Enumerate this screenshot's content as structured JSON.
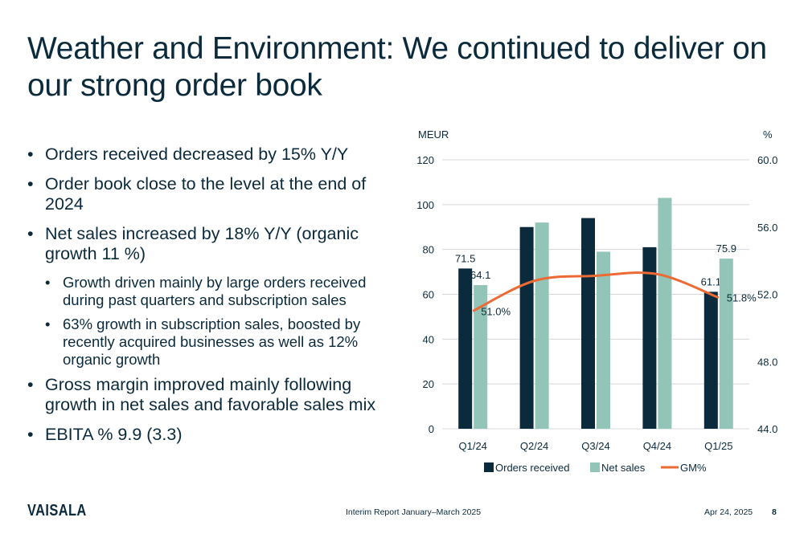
{
  "slide": {
    "title": "Weather and Environment: We continued to deliver on our strong order book"
  },
  "bullets": [
    {
      "level": 1,
      "text": "Orders received decreased by 15% Y/Y"
    },
    {
      "level": 1,
      "text": "Order book close to the level at the end of 2024"
    },
    {
      "level": 1,
      "text": "Net sales increased by 18% Y/Y (organic growth 11 %)"
    },
    {
      "level": 2,
      "text": "Growth driven mainly by large orders received during past quarters and subscription sales"
    },
    {
      "level": 2,
      "text": "63% growth in subscription sales, boosted by recently acquired businesses as well as 12% organic growth"
    },
    {
      "level": 1,
      "text": "Gross margin improved mainly following growth in net sales and favorable sales mix"
    },
    {
      "level": 1,
      "text": "EBITA % 9.9 (3.3)"
    }
  ],
  "chart_data": {
    "type": "bar",
    "categories": [
      "Q1/24",
      "Q2/24",
      "Q3/24",
      "Q4/24",
      "Q1/25"
    ],
    "series": [
      {
        "name": "Orders received",
        "kind": "bar",
        "axis": "left",
        "color": "#0b2a3c",
        "values": [
          71.5,
          90,
          94,
          81,
          61.1
        ],
        "labels": [
          "71.5",
          "",
          "",
          "",
          "61.1"
        ]
      },
      {
        "name": "Net sales",
        "kind": "bar",
        "axis": "left",
        "color": "#93c4b8",
        "values": [
          64.1,
          92,
          79,
          103,
          75.9
        ],
        "labels": [
          "64.1",
          "",
          "",
          "",
          "75.9"
        ]
      },
      {
        "name": "GM%",
        "kind": "line",
        "axis": "right",
        "color": "#ec6a33",
        "values": [
          51.0,
          52.8,
          53.1,
          53.2,
          51.8
        ],
        "labels": [
          "51.0%",
          "",
          "",
          "",
          "51.8%"
        ]
      }
    ],
    "ylabel": "MEUR",
    "y2label": "%",
    "ylim": [
      0,
      120
    ],
    "yticks": [
      "0",
      "20",
      "40",
      "60",
      "80",
      "100",
      "120"
    ],
    "y2lim": [
      44.0,
      60.0
    ],
    "y2ticks": [
      "44.0",
      "48.0",
      "52.0",
      "56.0",
      "60.0"
    ],
    "grid": true,
    "legend": "bottom"
  },
  "footer": {
    "logo": "VAISALA",
    "report": "Interim Report January–March 2025",
    "date": "Apr 24, 2025",
    "page": "8"
  },
  "colors": {
    "text": "#0b2a3c",
    "orders": "#0b2a3c",
    "netsales": "#93c4b8",
    "gm": "#ec6a33"
  }
}
